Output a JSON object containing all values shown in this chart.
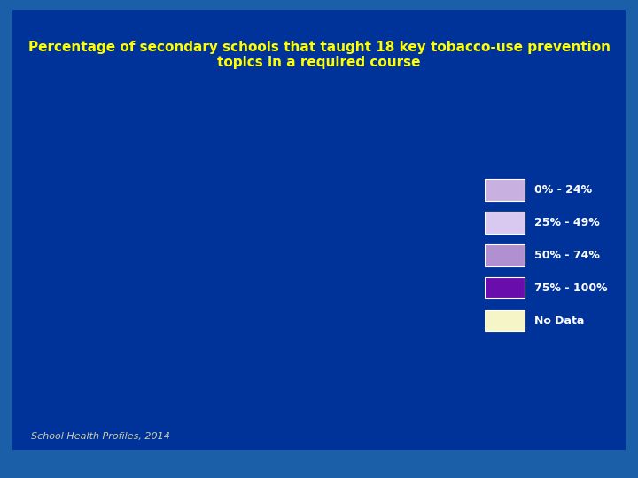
{
  "title_line1": "Percentage of secondary schools that taught 18 key tobacco-use prevention",
  "title_line2": "topics in a required course",
  "title_color": "#FFFF00",
  "bg_outer": "#1a5fa8",
  "bg_inner": "#003399",
  "footnote": "School Health Profiles, 2014",
  "footnote_color": "#ccccaa",
  "legend_labels": [
    "0% - 24%",
    "25% - 49%",
    "50% - 74%",
    "75% - 100%",
    "No Data"
  ],
  "legend_colors": [
    "#c8b0e0",
    "#d9c8f0",
    "#b090d0",
    "#6a0dad",
    "#f5f5c8"
  ],
  "state_colors": {
    "AL": "#b090d0",
    "AK": "#d9c8f0",
    "AZ": "#b090d0",
    "AR": "#6a0dad",
    "CA": "#d9c8f0",
    "CO": "#b090d0",
    "CT": "#c8b0e0",
    "DE": "#c8b0e0",
    "FL": "#b090d0",
    "GA": "#b090d0",
    "HI": "#b090d0",
    "ID": "#6a0dad",
    "IL": "#6a0dad",
    "IN": "#b090d0",
    "IA": "#6a0dad",
    "KS": "#b090d0",
    "KY": "#b090d0",
    "LA": "#b090d0",
    "ME": "#b090d0",
    "MD": "#c8b0e0",
    "MA": "#c8b0e0",
    "MI": "#6a0dad",
    "MN": "#6a0dad",
    "MS": "#6a0dad",
    "MO": "#b090d0",
    "MT": "#6a0dad",
    "NE": "#6a0dad",
    "NV": "#b090d0",
    "NH": "#c8b0e0",
    "NJ": "#c8b0e0",
    "NM": "#b090d0",
    "NY": "#6a0dad",
    "NC": "#b090d0",
    "ND": "#6a0dad",
    "OH": "#b090d0",
    "OK": "#b090d0",
    "OR": "#6a0dad",
    "PA": "#b090d0",
    "RI": "#c8b0e0",
    "SC": "#b090d0",
    "SD": "#6a0dad",
    "TN": "#b090d0",
    "TX": "#f5f5c8",
    "UT": "#d9c8f0",
    "VT": "#c8b0e0",
    "VA": "#b090d0",
    "WA": "#6a0dad",
    "WV": "#b090d0",
    "WI": "#6a0dad",
    "WY": "#6a0dad"
  }
}
